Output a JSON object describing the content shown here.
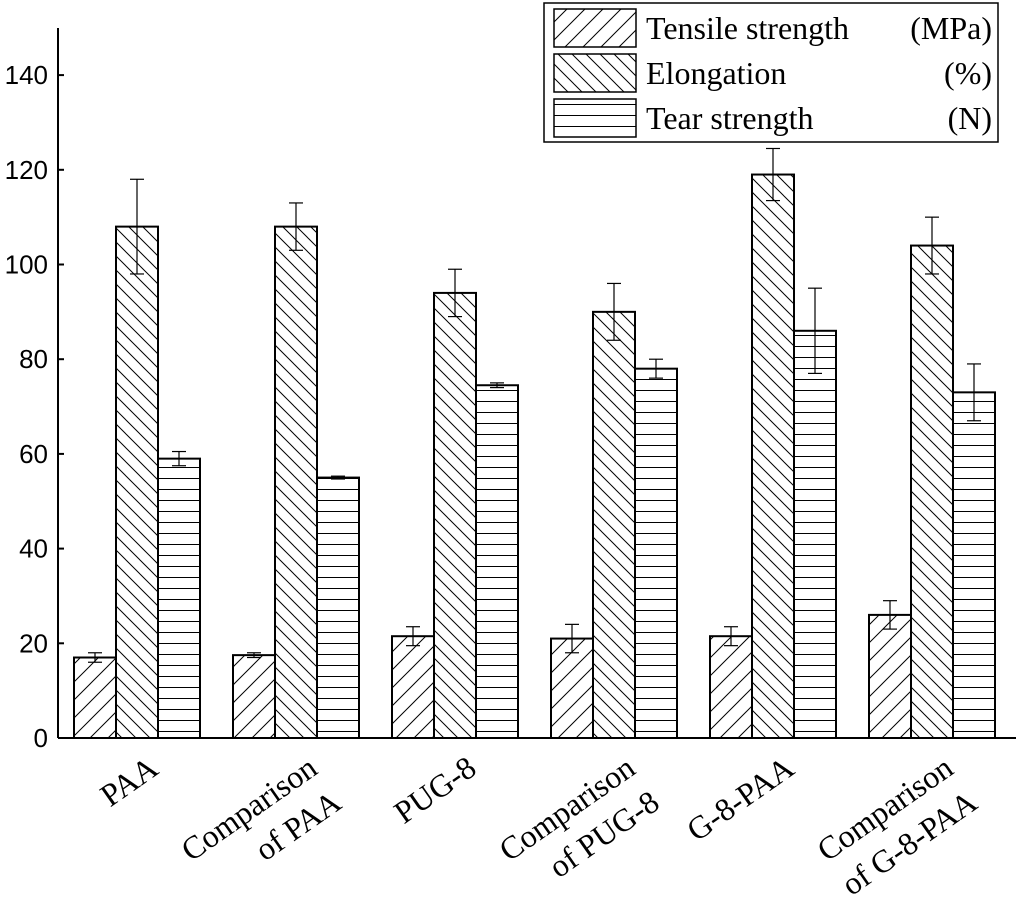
{
  "chart_data": {
    "type": "bar",
    "categories": [
      [
        "PAA"
      ],
      [
        "Comparison",
        "of PAA"
      ],
      [
        "PUG-8"
      ],
      [
        "Comparison",
        "of PUG-8"
      ],
      [
        "G-8-PAA"
      ],
      [
        "Comparison",
        "of G-8-PAA"
      ]
    ],
    "series": [
      {
        "name": "Tensile strength",
        "unit": "(MPa)",
        "pattern": "diag-up",
        "values": [
          17,
          17.5,
          21.5,
          21,
          21.5,
          26
        ],
        "errors": [
          1,
          0.5,
          2,
          3,
          2,
          3
        ]
      },
      {
        "name": "Elongation",
        "unit": "(%)",
        "pattern": "diag-down",
        "values": [
          108,
          108,
          94,
          90,
          119,
          104
        ],
        "errors": [
          10,
          5,
          5,
          6,
          5.5,
          6
        ]
      },
      {
        "name": "Tear strength",
        "unit": "(N)",
        "pattern": "horizontal",
        "values": [
          59,
          55,
          74.5,
          78,
          86,
          73
        ],
        "errors": [
          1.5,
          0.3,
          0.5,
          2,
          9,
          6
        ]
      }
    ],
    "yticks": [
      0,
      20,
      40,
      60,
      80,
      100,
      120,
      140
    ],
    "ylim": [
      0,
      150
    ],
    "grid": false,
    "legend_position": "top-right",
    "xlabel": "",
    "ylabel": ""
  }
}
